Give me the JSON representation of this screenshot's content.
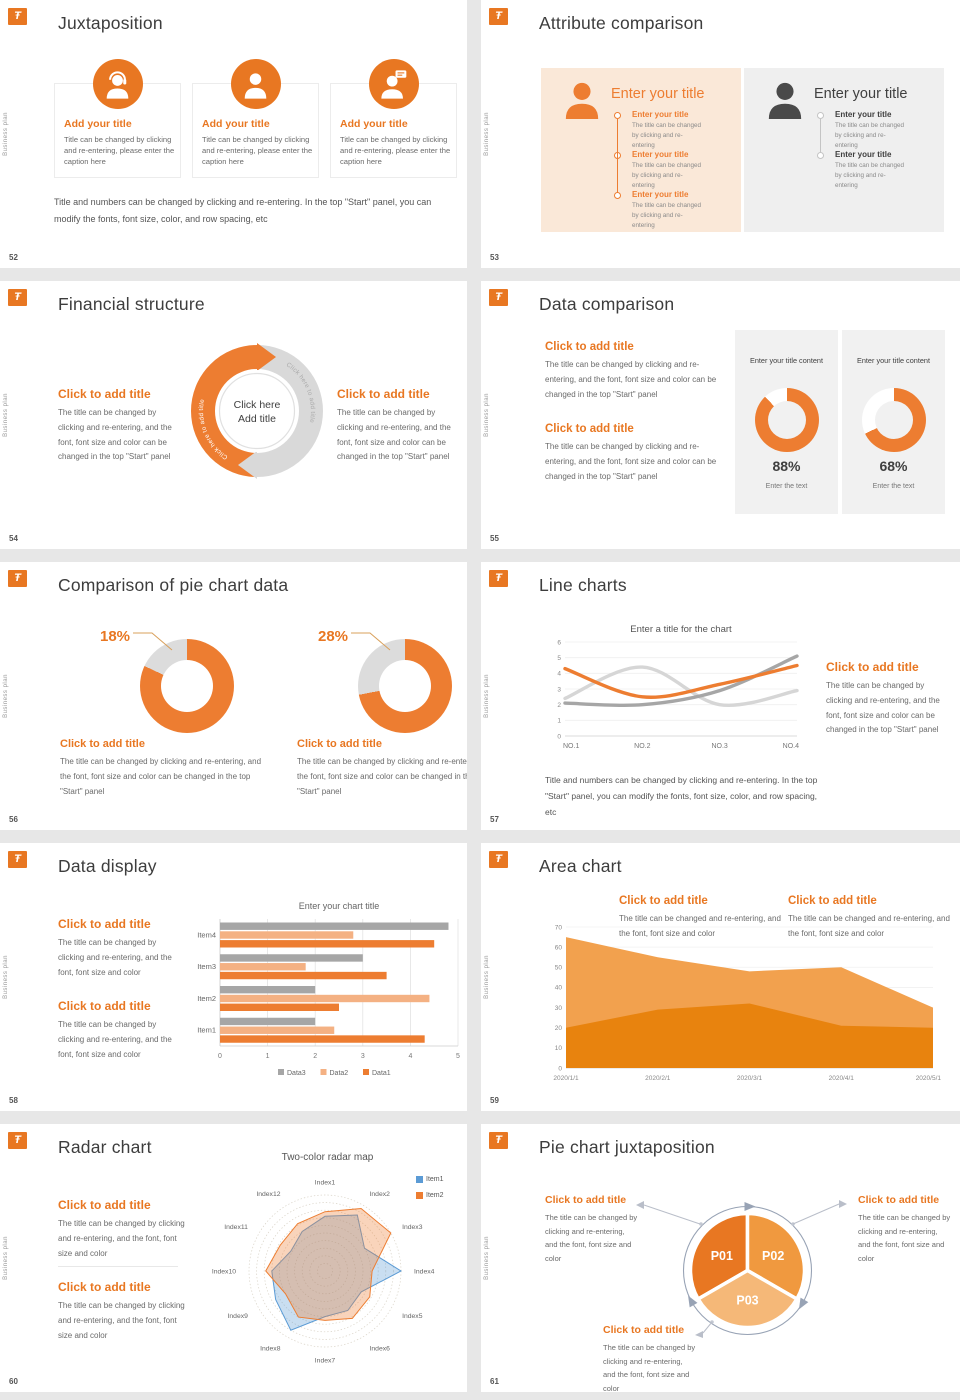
{
  "brand": {
    "logo_glyph": "Ŧ",
    "sidebar_text": "Business plan"
  },
  "colors": {
    "accent": "#e87722",
    "chart_orange": "#ED7D31",
    "light_orange": "#F4B183",
    "gray": "#A6A6A6",
    "light_gray": "#D9D9D9",
    "panel_peach": "#fae8d8",
    "panel_gray": "#efefef"
  },
  "slides": {
    "s52": {
      "page": "52",
      "title": "Juxtaposition",
      "cards": [
        {
          "icon": "person-headset-icon",
          "heading": "Add your title",
          "body": "Title can be changed by clicking and re-entering, please enter the caption here"
        },
        {
          "icon": "person-icon",
          "heading": "Add your title",
          "body": "Title can be changed by clicking and re-entering, please enter the caption here"
        },
        {
          "icon": "person-chat-icon",
          "heading": "Add your title",
          "body": "Title can be changed by clicking and re-entering, please enter the caption here"
        }
      ],
      "footnote": "Title and numbers can be changed by clicking and re-entering. In the top \"Start\" panel, you can modify the fonts, font size, color, and row spacing, etc"
    },
    "s53": {
      "page": "53",
      "title": "Attribute comparison",
      "left": {
        "big_title": "Enter your title",
        "items": [
          {
            "heading": "Enter your title",
            "body": "The title can be changed by clicking and re-entering"
          },
          {
            "heading": "Enter your title",
            "body": "The title can be changed by clicking and re-entering"
          },
          {
            "heading": "Enter your title",
            "body": "The title can be changed by clicking and re-entering"
          }
        ]
      },
      "right": {
        "big_title": "Enter your title",
        "items": [
          {
            "heading": "Enter your title",
            "body": "The title can be changed by clicking and re-entering"
          },
          {
            "heading": "Enter your title",
            "body": "The title can be changed by clicking and re-entering"
          }
        ]
      }
    },
    "s54": {
      "page": "54",
      "title": "Financial structure",
      "left": {
        "heading": "Click to add title",
        "body": "The title can be changed by clicking and re-entering, and the font, font size and color can be changed in the top \"Start\" panel"
      },
      "right": {
        "heading": "Click to add title",
        "body": "The title can be changed by clicking and re-entering, and the font, font size and color can be changed in the top \"Start\" panel"
      },
      "center": {
        "line1": "Click here",
        "line2": "Add title",
        "arc_text_left": "Click here to add title",
        "arc_text_right": "Click here to add title"
      }
    },
    "s55": {
      "page": "55",
      "title": "Data comparison",
      "blocks": [
        {
          "heading": "Click to add title",
          "body": "The title can be changed by clicking and re-entering, and the font, font size and color can be changed in the top \"Start\" panel"
        },
        {
          "heading": "Click to add title",
          "body": "The title can be changed by clicking and re-entering, and the font, font size and color can be changed in the top \"Start\" panel"
        }
      ]
    },
    "s56": {
      "page": "56",
      "title": "Comparison of pie chart data",
      "items": [
        {
          "heading": "Click to add title",
          "body": "The title can be changed by clicking and re-entering, and the font, font size and color can be changed in the top \"Start\" panel"
        },
        {
          "heading": "Click to add title",
          "body": "The title can be changed by clicking and re-entering, and the font, font size and color can be changed in the top \"Start\" panel"
        }
      ]
    },
    "s57": {
      "page": "57",
      "title": "Line charts",
      "right": {
        "heading": "Click to add title",
        "body": "The title can be changed by clicking and re-entering, and the font, font size and color can be changed in the top \"Start\" panel"
      },
      "footnote": "Title and numbers can be changed by clicking and re-entering. In the top \"Start\" panel, you can modify the fonts, font size, color, and row spacing, etc"
    },
    "s58": {
      "page": "58",
      "title": "Data display",
      "blocks": [
        {
          "heading": "Click to add title",
          "body": "The title can be changed by clicking and re-entering, and the font, font size and color"
        },
        {
          "heading": "Click to add title",
          "body": "The title can be changed by clicking and re-entering, and the font, font size and color"
        }
      ]
    },
    "s59": {
      "page": "59",
      "title": "Area chart",
      "blocks": [
        {
          "heading": "Click to add title",
          "body": "The title can be changed and re-entering, and the font, font size and color"
        },
        {
          "heading": "Click to add title",
          "body": "The title can be changed and re-entering, and the font, font size and color"
        }
      ]
    },
    "s60": {
      "page": "60",
      "title": "Radar chart",
      "blocks": [
        {
          "heading": "Click to add title",
          "body": "The title can be changed by clicking and re-entering, and the font, font size and color"
        },
        {
          "heading": "Click to add title",
          "body": "The title can be changed by clicking and re-entering, and the font, font size and color"
        }
      ]
    },
    "s61": {
      "page": "61",
      "title": "Pie chart juxtaposition",
      "blocks": [
        {
          "heading": "Click to add title",
          "body": "The title can be changed by clicking and re-entering, and the font, font size and color"
        },
        {
          "heading": "Click to add title",
          "body": "The title can be changed by clicking and re-entering, and the font, font size and color"
        },
        {
          "heading": "Click to add title",
          "body": "The title can be changed by clicking and re-entering, and the font, font size and color"
        }
      ]
    }
  },
  "chart_data": [
    {
      "slide": 55,
      "type": "pie",
      "variant": "donut-kpi",
      "items": [
        {
          "title": "Enter your title content",
          "value": 88,
          "arc": 88,
          "label": "88%",
          "caption": "Enter the text"
        },
        {
          "title": "Enter your title content",
          "value": 68,
          "arc": 68,
          "label": "68%",
          "caption": "Enter the text"
        }
      ],
      "colors": {
        "main": "#ED7D31",
        "track": "#ffffff"
      }
    },
    {
      "slide": 56,
      "type": "pie",
      "variant": "donut-slice",
      "items": [
        {
          "label": "18%",
          "value": 18,
          "arc": 82
        },
        {
          "label": "28%",
          "value": 28,
          "arc": 72
        }
      ],
      "colors": {
        "main": "#ED7D31",
        "track": "#DCDCDC"
      }
    },
    {
      "slide": 57,
      "type": "line",
      "title": "Enter a title for the chart",
      "categories": [
        "NO.1",
        "NO.2",
        "NO.3",
        "NO.4"
      ],
      "ylim": [
        0,
        6
      ],
      "yticks": [
        0,
        1,
        2,
        3,
        4,
        5,
        6
      ],
      "series": [
        {
          "name": "series-orange",
          "color": "#ED7D31",
          "values": [
            4.3,
            2.5,
            3.3,
            4.5
          ]
        },
        {
          "name": "series-gray",
          "color": "#A6A6A6",
          "values": [
            2.1,
            2.0,
            2.9,
            5.1
          ]
        },
        {
          "name": "series-lightgray",
          "color": "#D6D6D6",
          "values": [
            2.4,
            4.4,
            2.0,
            2.9
          ]
        }
      ]
    },
    {
      "slide": 58,
      "type": "bar",
      "orientation": "horizontal",
      "title": "Enter your chart title",
      "categories": [
        "Item1",
        "Item2",
        "Item3",
        "Item4"
      ],
      "xlim": [
        0,
        5
      ],
      "xticks": [
        0,
        1,
        2,
        3,
        4,
        5
      ],
      "series": [
        {
          "name": "Data3",
          "color": "#A6A6A6",
          "values": [
            2.0,
            2.0,
            3.0,
            4.8
          ]
        },
        {
          "name": "Data2",
          "color": "#F4B183",
          "values": [
            2.4,
            4.4,
            1.8,
            2.8
          ]
        },
        {
          "name": "Data1",
          "color": "#ED7D31",
          "values": [
            4.3,
            2.5,
            3.5,
            4.5
          ]
        }
      ],
      "legend": [
        "Data3",
        "Data2",
        "Data1"
      ]
    },
    {
      "slide": 59,
      "type": "area",
      "categories": [
        "2020/1/1",
        "2020/2/1",
        "2020/3/1",
        "2020/4/1",
        "2020/5/1"
      ],
      "ylim": [
        0,
        70
      ],
      "yticks": [
        0,
        10,
        20,
        30,
        40,
        50,
        60,
        70
      ],
      "series": [
        {
          "name": "series-light",
          "color": "#F2A14E",
          "values": [
            65,
            55,
            48,
            50,
            30
          ]
        },
        {
          "name": "series-dark",
          "color": "#E8830E",
          "values": [
            20,
            29,
            32,
            21,
            20
          ]
        }
      ]
    },
    {
      "slide": 60,
      "type": "radar",
      "title": "Two-color radar map",
      "rmax": 1,
      "axes": [
        "Index1",
        "Index2",
        "Index3",
        "Index4",
        "Index5",
        "Index6",
        "Index7",
        "Index8",
        "Index9",
        "Index10",
        "Index11",
        "Index12"
      ],
      "legend": [
        "Item1",
        "Item2"
      ],
      "series": [
        {
          "name": "Item1",
          "color": "#5B9BD5",
          "values": [
            0.72,
            0.85,
            0.6,
            1.0,
            0.55,
            0.6,
            0.6,
            0.9,
            0.75,
            0.7,
            0.52,
            0.6
          ]
        },
        {
          "name": "Item2",
          "color": "#ED7D31",
          "values": [
            0.78,
            0.95,
            1.0,
            0.62,
            0.68,
            0.72,
            0.65,
            0.7,
            0.6,
            0.78,
            0.68,
            0.72
          ]
        }
      ]
    },
    {
      "slide": 61,
      "type": "pie",
      "variant": "thirds",
      "segments": [
        {
          "label": "P01",
          "value": 33.3,
          "color": "#E87722"
        },
        {
          "label": "P02",
          "value": 33.3,
          "color": "#F0993F"
        },
        {
          "label": "P03",
          "value": 33.4,
          "color": "#F5B878"
        }
      ]
    }
  ]
}
